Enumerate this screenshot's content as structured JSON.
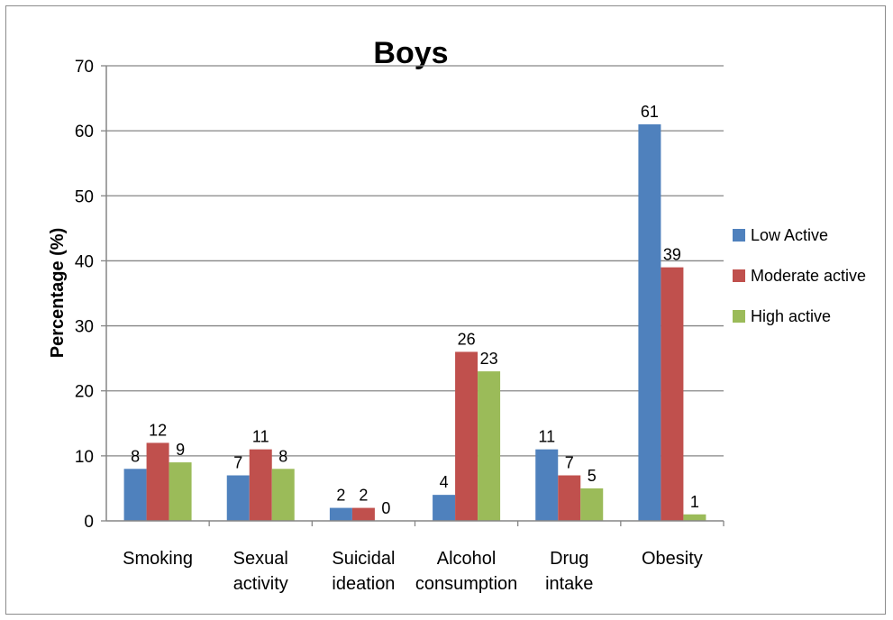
{
  "chart_data": {
    "type": "bar",
    "title": "Boys",
    "xlabel": "",
    "ylabel": "Percentage (%)",
    "ylim": [
      0,
      70
    ],
    "yticks": [
      0,
      10,
      20,
      30,
      40,
      50,
      60,
      70
    ],
    "grid": true,
    "legend_position": "right",
    "categories": [
      [
        "Smoking"
      ],
      [
        "Sexual",
        "activity"
      ],
      [
        "Suicidal",
        "ideation"
      ],
      [
        "Alcohol",
        "consumption"
      ],
      [
        "Drug",
        "intake"
      ],
      [
        "Obesity"
      ]
    ],
    "series": [
      {
        "name": "Low Active",
        "color": "#4f81bd",
        "values": [
          8,
          7,
          2,
          4,
          11,
          61
        ]
      },
      {
        "name": "Moderate active",
        "color": "#c0504d",
        "values": [
          12,
          11,
          2,
          26,
          7,
          39
        ]
      },
      {
        "name": "High active",
        "color": "#9bbb59",
        "values": [
          9,
          8,
          0,
          23,
          5,
          1
        ]
      }
    ]
  }
}
